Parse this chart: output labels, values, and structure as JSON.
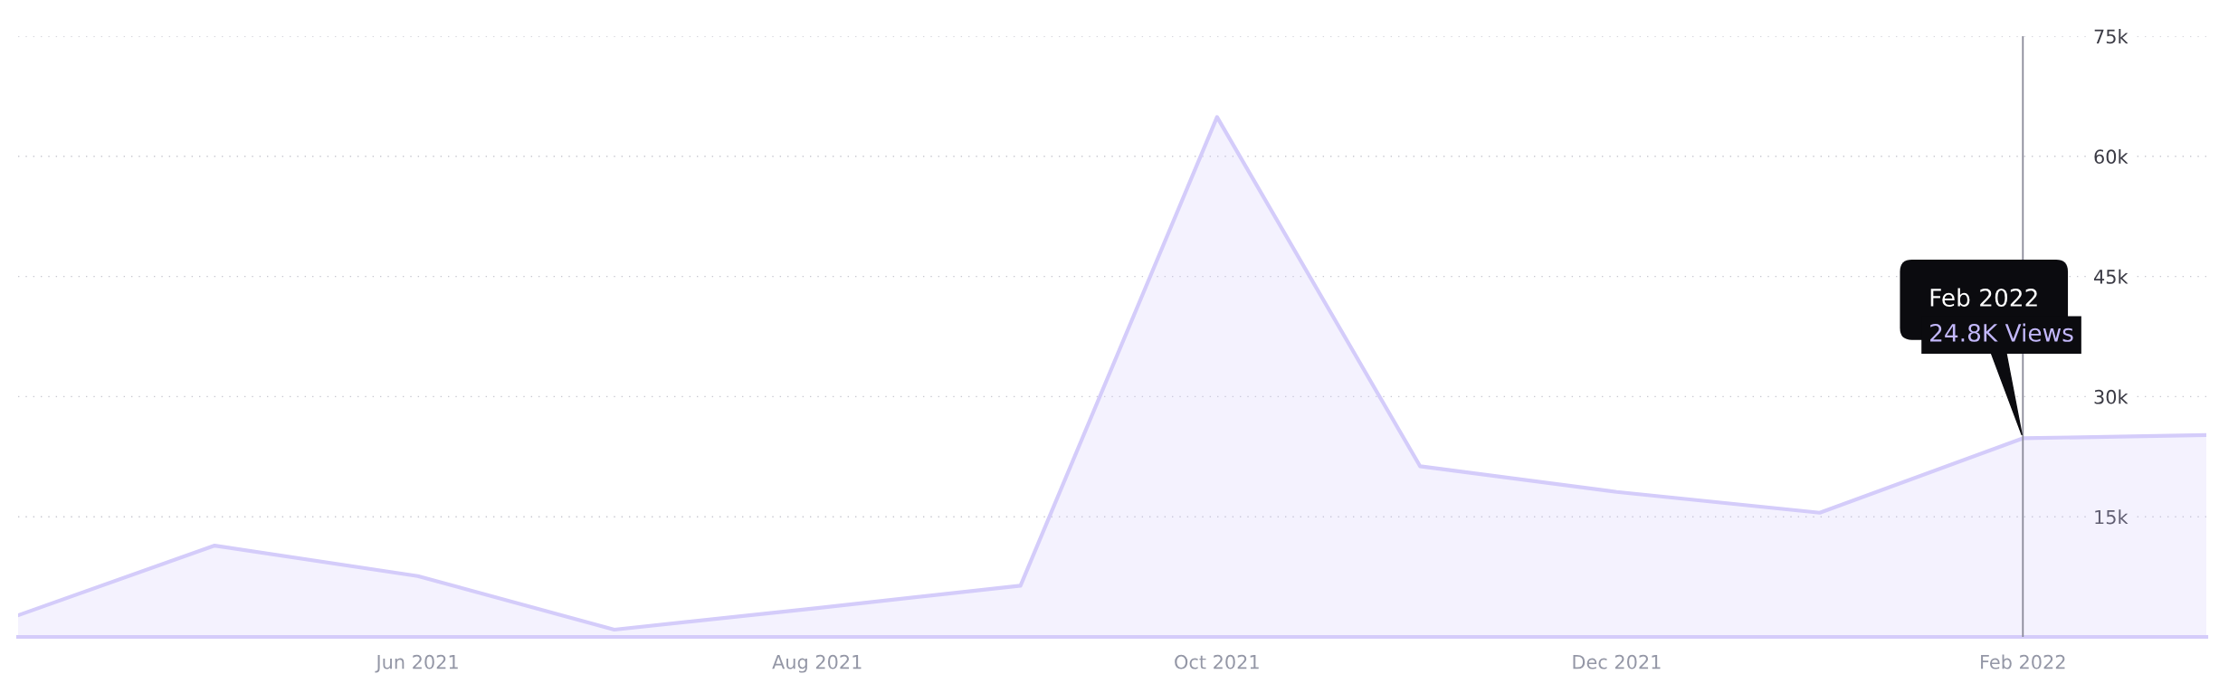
{
  "chart_data": {
    "type": "area",
    "x": [
      "2021-04",
      "2021-05",
      "2021-06",
      "2021-07",
      "2021-08",
      "2021-09",
      "2021-10",
      "2021-11",
      "2021-12",
      "2022-01",
      "2022-02",
      "2022-03"
    ],
    "series": [
      {
        "color": "#d4ccfa",
        "values": [
          2700,
          11400,
          7600,
          900,
          3600,
          6400,
          64900,
          21300,
          18100,
          15500,
          24800,
          25200
        ]
      }
    ],
    "xlim": [
      "2021-04",
      "2022-03"
    ],
    "xticks": [
      {
        "value": "2021-06",
        "label": "Jun 2021"
      },
      {
        "value": "2021-08",
        "label": "Aug 2021"
      },
      {
        "value": "2021-10",
        "label": "Oct 2021"
      },
      {
        "value": "2021-12",
        "label": "Dec 2021"
      },
      {
        "value": "2022-02",
        "label": "Feb 2022"
      }
    ],
    "ylim": [
      0,
      75000
    ],
    "yticks": [
      {
        "value": 15000,
        "label": "15k"
      },
      {
        "value": 30000,
        "label": "30k"
      },
      {
        "value": 45000,
        "label": "45k"
      },
      {
        "value": 60000,
        "label": "60k"
      },
      {
        "value": 75000,
        "label": "75k"
      }
    ],
    "grid": "y",
    "ref_lines": [
      {
        "axis": "x",
        "value": "2022-02",
        "color": "#8a8a99"
      }
    ],
    "annotations": [
      {
        "text": "Feb 2022\n24.8K Views",
        "x": "2022-02",
        "y": 24800
      }
    ]
  }
}
